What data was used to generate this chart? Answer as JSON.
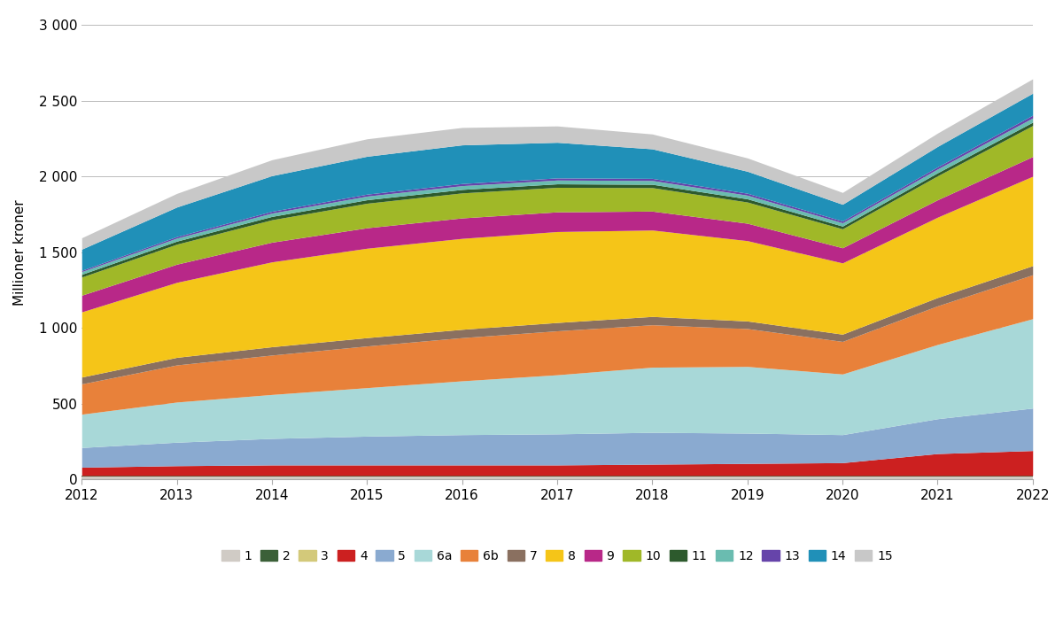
{
  "years": [
    2012,
    2013,
    2014,
    2015,
    2016,
    2017,
    2018,
    2019,
    2020,
    2021,
    2022
  ],
  "series": {
    "1": [
      20,
      20,
      20,
      20,
      20,
      20,
      20,
      20,
      20,
      20,
      20
    ],
    "2": [
      3,
      3,
      3,
      3,
      3,
      3,
      3,
      3,
      3,
      3,
      3
    ],
    "3": [
      3,
      3,
      3,
      3,
      3,
      3,
      3,
      3,
      3,
      3,
      3
    ],
    "4": [
      55,
      65,
      70,
      70,
      70,
      70,
      75,
      80,
      85,
      145,
      165
    ],
    "5": [
      130,
      155,
      175,
      190,
      200,
      205,
      210,
      200,
      185,
      230,
      280
    ],
    "6a": [
      220,
      265,
      290,
      320,
      355,
      390,
      430,
      440,
      400,
      490,
      590
    ],
    "6b": [
      200,
      245,
      260,
      275,
      285,
      290,
      280,
      250,
      215,
      255,
      290
    ],
    "7": [
      45,
      50,
      55,
      55,
      55,
      55,
      55,
      50,
      48,
      55,
      60
    ],
    "8": [
      430,
      495,
      560,
      590,
      600,
      600,
      570,
      530,
      470,
      530,
      590
    ],
    "9": [
      110,
      120,
      130,
      135,
      135,
      130,
      125,
      115,
      100,
      115,
      130
    ],
    "10": [
      120,
      132,
      148,
      162,
      165,
      162,
      155,
      140,
      125,
      158,
      205
    ],
    "11": [
      18,
      20,
      22,
      23,
      23,
      23,
      22,
      21,
      18,
      20,
      22
    ],
    "12": [
      18,
      20,
      22,
      24,
      25,
      25,
      25,
      24,
      22,
      25,
      28
    ],
    "13": [
      8,
      10,
      12,
      13,
      14,
      14,
      14,
      13,
      12,
      14,
      18
    ],
    "14": [
      140,
      195,
      235,
      250,
      255,
      235,
      195,
      145,
      110,
      135,
      145
    ],
    "15": [
      75,
      90,
      105,
      115,
      115,
      108,
      98,
      88,
      78,
      88,
      95
    ]
  },
  "colors": {
    "1": "#d0cbc5",
    "2": "#3b6038",
    "3": "#d3c97a",
    "4": "#cc2020",
    "5": "#8aaad0",
    "6a": "#a8d8d8",
    "6b": "#e8813a",
    "7": "#8a7060",
    "8": "#f5c518",
    "9": "#b82888",
    "10": "#a0b828",
    "11": "#2d5a2d",
    "12": "#6abcb0",
    "13": "#6644aa",
    "14": "#2090b8",
    "15": "#c8c8c8"
  },
  "ylabel": "Millioner kroner",
  "ylim": [
    0,
    3000
  ],
  "yticks": [
    0,
    500,
    1000,
    1500,
    2000,
    2500,
    3000
  ],
  "ytick_labels": [
    "0",
    "500",
    "1 000",
    "1 500",
    "2 000",
    "2 500",
    "3 000"
  ],
  "legend_order": [
    "1",
    "2",
    "3",
    "4",
    "5",
    "6a",
    "6b",
    "7",
    "8",
    "9",
    "10",
    "11",
    "12",
    "13",
    "14",
    "15"
  ],
  "background_color": "#ffffff"
}
